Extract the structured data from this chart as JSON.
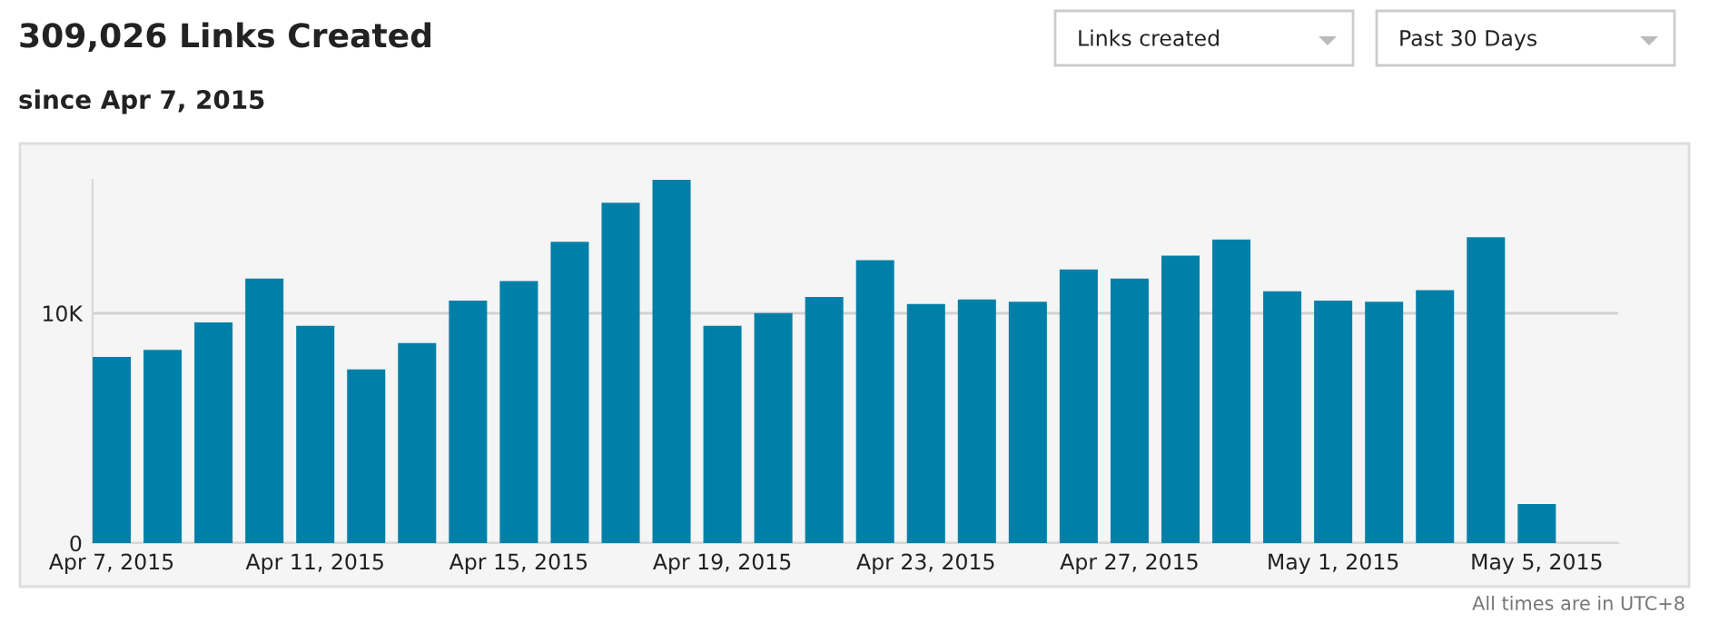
{
  "chart_data": {
    "type": "bar",
    "title": "309,026 Links Created",
    "subtitle": "since Apr 7, 2015",
    "categories": [
      "Apr 7, 2015",
      null,
      null,
      null,
      "Apr 11, 2015",
      null,
      null,
      null,
      "Apr 15, 2015",
      null,
      null,
      null,
      "Apr 19, 2015",
      null,
      null,
      null,
      "Apr 23, 2015",
      null,
      null,
      null,
      "Apr 27, 2015",
      null,
      null,
      null,
      "May 1, 2015",
      null,
      null,
      null,
      "May 5, 2015"
    ],
    "values": [
      8100,
      8400,
      9600,
      11500,
      9450,
      7550,
      8700,
      10550,
      11400,
      13100,
      14800,
      15800,
      9450,
      10000,
      10700,
      12300,
      10400,
      10600,
      10500,
      11900,
      11500,
      12500,
      13200,
      10950,
      10550,
      10500,
      11000,
      13300,
      1700
    ],
    "color": "#0080a8",
    "ylim": [
      0,
      15800
    ],
    "yticks": [
      0,
      {
        "value": 10000,
        "label": "10K"
      }
    ],
    "grid": "y",
    "annotations": [
      "Links created",
      "Past 30 Days",
      "All times are in UTC+8"
    ]
  }
}
